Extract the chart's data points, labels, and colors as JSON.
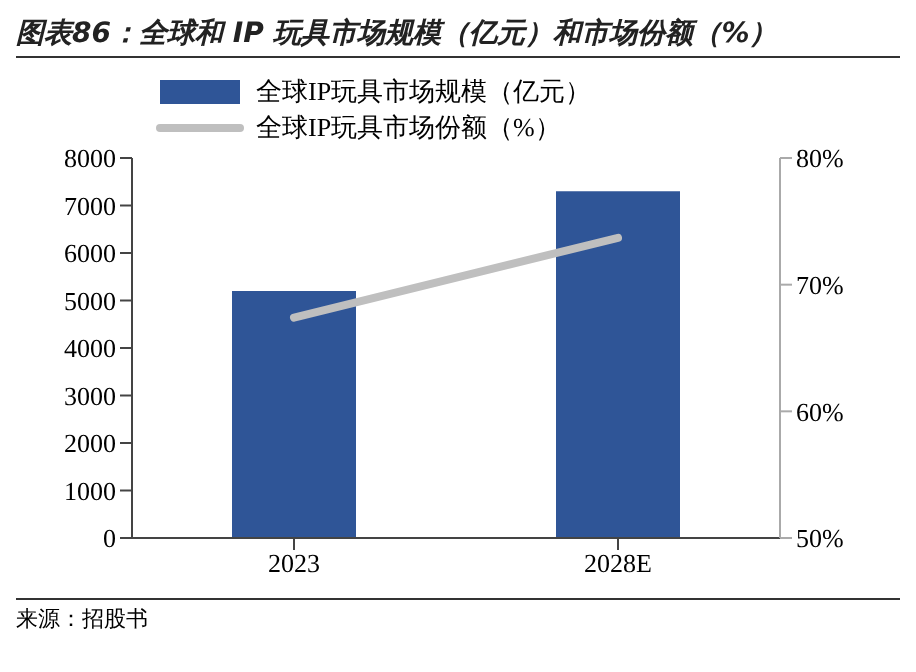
{
  "chart_data": {
    "type": "bar",
    "title": "图表86：全球和 IP 玩具市场规模（亿元）和市场份额（%）",
    "categories": [
      "2023",
      "2028E"
    ],
    "series": [
      {
        "name": "全球IP玩具市场规模（亿元）",
        "color": "#2f5597",
        "values": [
          5200,
          7300
        ]
      },
      {
        "name": "全球IP玩具市场份额（%）",
        "type": "line",
        "axis": "y2",
        "color": "#bfbfbf",
        "values": [
          67.4,
          73.7
        ]
      }
    ],
    "ylim": [
      0,
      8000
    ],
    "yticks": [
      0,
      1000,
      2000,
      3000,
      4000,
      5000,
      6000,
      7000,
      8000
    ],
    "y2lim": [
      50,
      80
    ],
    "y2ticks": [
      {
        "value": 50,
        "label": "50%"
      },
      {
        "value": 60,
        "label": "60%"
      },
      {
        "value": 70,
        "label": "70%"
      },
      {
        "value": 80,
        "label": "80%"
      }
    ],
    "legend": "top left",
    "grid": false,
    "marker": "none",
    "line_style": "solid",
    "annotations": [
      "来源：招股书"
    ]
  }
}
